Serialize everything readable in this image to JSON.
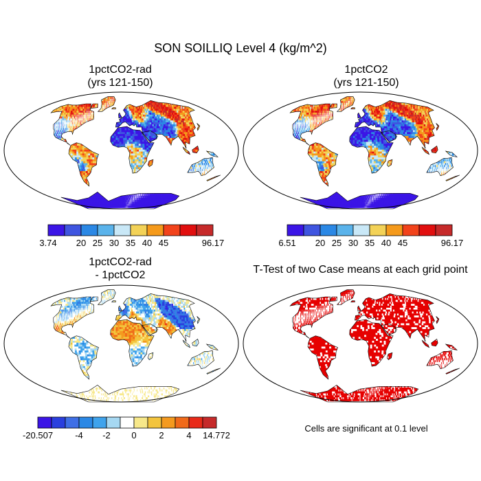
{
  "figure": {
    "title": "SON SOILLIQ Level 4 (kg/m^2)"
  },
  "chart_data": [
    {
      "type": "heatmap",
      "title": "1pctCO2-rad",
      "subtitle": "(yrs 121-150)",
      "colorbar": {
        "colors": [
          "#3b15e6",
          "#3f55e0",
          "#2b88e5",
          "#5ab3eb",
          "#c9e8f7",
          "#f3d257",
          "#f59a1b",
          "#f2431b",
          "#e10f0f",
          "#c62a2a"
        ],
        "labels": [
          "3.74",
          "20",
          "25",
          "30",
          "35",
          "40",
          "45",
          "96.17"
        ],
        "label_positions": [
          0,
          2,
          3,
          4,
          5,
          6,
          7,
          10
        ],
        "min": 3.74,
        "max": 96.17
      }
    },
    {
      "type": "heatmap",
      "title": "1pctCO2",
      "subtitle": "(yrs 121-150)",
      "colorbar": {
        "colors": [
          "#3b15e6",
          "#3f55e0",
          "#2b88e5",
          "#5ab3eb",
          "#c9e8f7",
          "#f3d257",
          "#f59a1b",
          "#f2431b",
          "#e10f0f",
          "#c62a2a"
        ],
        "labels": [
          "6.51",
          "20",
          "25",
          "30",
          "35",
          "40",
          "45",
          "96.17"
        ],
        "label_positions": [
          0,
          2,
          3,
          4,
          5,
          6,
          7,
          10
        ],
        "min": 6.51,
        "max": 96.17
      }
    },
    {
      "type": "heatmap",
      "title": "1pctCO2-rad",
      "subtitle": "- 1pctCO2",
      "colorbar": {
        "colors": [
          "#3b15e6",
          "#2a3fde",
          "#3f6fe6",
          "#2b88e5",
          "#3fa3ec",
          "#a6d8f2",
          "#ffffff",
          "#f7e88a",
          "#f3c43d",
          "#f49a1f",
          "#f06a1a",
          "#e82a18",
          "#c62a2a"
        ],
        "labels": [
          "-20.507",
          "-4",
          "-2",
          "0",
          "2",
          "4",
          "14.772"
        ],
        "label_positions": [
          0,
          3,
          5,
          7,
          9,
          11,
          13
        ],
        "min": -20.507,
        "max": 14.772
      }
    },
    {
      "type": "heatmap",
      "title": "T-Test of two Case means at each grid point",
      "significant_color": "#e60000",
      "note": "Cells are significant at 0.1 level"
    }
  ]
}
